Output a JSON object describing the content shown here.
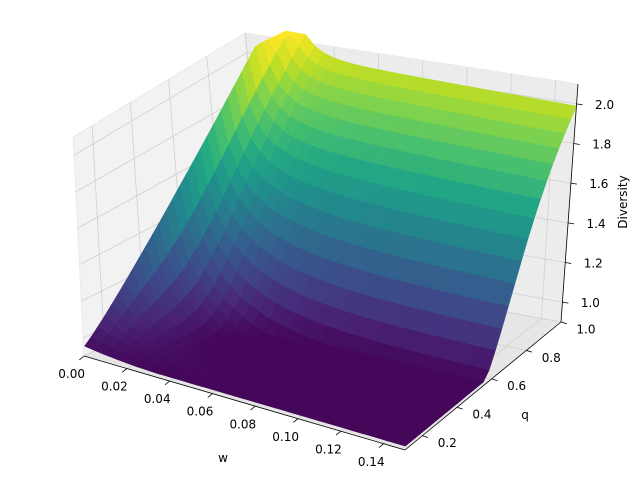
{
  "chart_data": {
    "type": "surface3d",
    "title": "",
    "xlabel": "w",
    "ylabel": "q",
    "zlabel": "Diversity",
    "xlim": [
      0.0,
      0.15
    ],
    "ylim": [
      0.1,
      1.0
    ],
    "zlim": [
      0.9,
      2.1
    ],
    "xticks": [
      "0.00",
      "0.02",
      "0.04",
      "0.06",
      "0.08",
      "0.10",
      "0.12",
      "0.14"
    ],
    "yticks": [
      "0.2",
      "0.4",
      "0.6",
      "0.8",
      "1.0"
    ],
    "zticks": [
      "1.0",
      "1.2",
      "1.4",
      "1.6",
      "1.8",
      "2.0"
    ],
    "colormap": "viridis",
    "grid": true,
    "surface_samples": [
      {
        "w": 0.0,
        "q": 0.1,
        "diversity": 0.95
      },
      {
        "w": 0.0,
        "q": 0.5,
        "diversity": 1.8
      },
      {
        "w": 0.0,
        "q": 1.0,
        "diversity": 2.1
      },
      {
        "w": 0.02,
        "q": 0.1,
        "diversity": 0.95
      },
      {
        "w": 0.02,
        "q": 0.5,
        "diversity": 1.55
      },
      {
        "w": 0.02,
        "q": 1.0,
        "diversity": 2.0
      },
      {
        "w": 0.05,
        "q": 0.1,
        "diversity": 0.95
      },
      {
        "w": 0.05,
        "q": 0.5,
        "diversity": 1.3
      },
      {
        "w": 0.05,
        "q": 1.0,
        "diversity": 2.0
      },
      {
        "w": 0.1,
        "q": 0.1,
        "diversity": 0.95
      },
      {
        "w": 0.1,
        "q": 0.5,
        "diversity": 1.25
      },
      {
        "w": 0.1,
        "q": 1.0,
        "diversity": 2.0
      },
      {
        "w": 0.15,
        "q": 0.1,
        "diversity": 0.95
      },
      {
        "w": 0.15,
        "q": 0.5,
        "diversity": 1.2
      },
      {
        "w": 0.15,
        "q": 1.0,
        "diversity": 2.0
      }
    ]
  }
}
